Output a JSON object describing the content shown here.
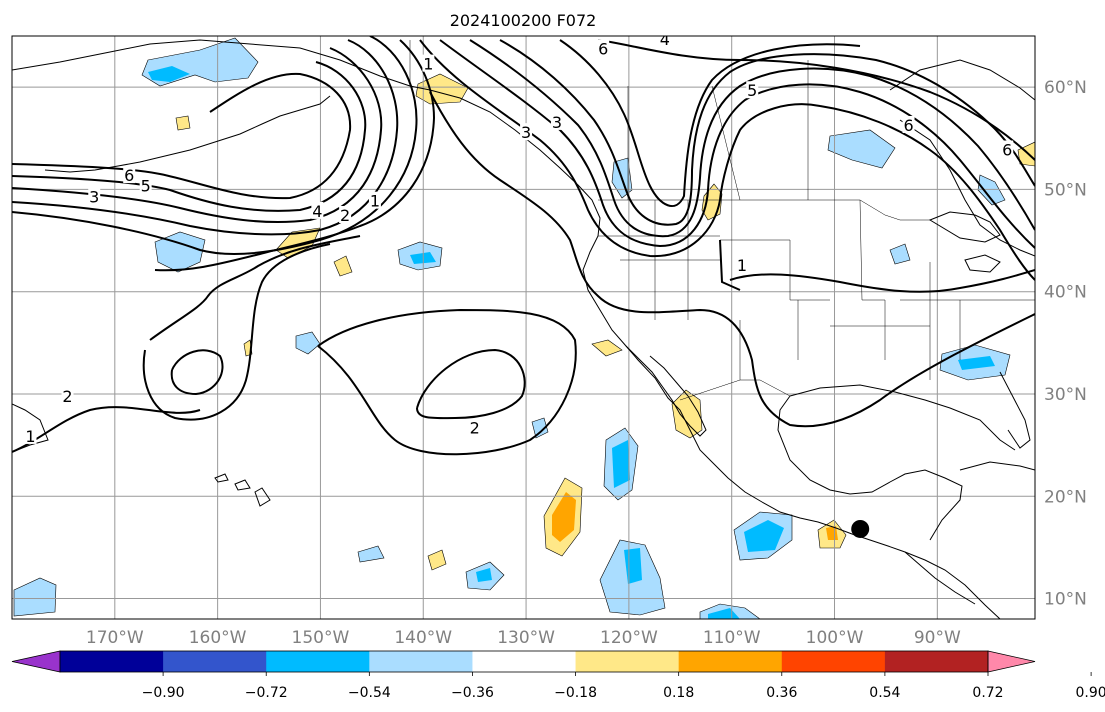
{
  "title": "2024100200 F072",
  "map": {
    "lon_min": -180,
    "lon_max": -80.5,
    "lat_min": 8,
    "lat_max": 65,
    "projection": "PlateCarree",
    "grid": true,
    "lon_ticks": [
      {
        "lon": -170,
        "label": "170°W"
      },
      {
        "lon": -160,
        "label": "160°W"
      },
      {
        "lon": -150,
        "label": "150°W"
      },
      {
        "lon": -140,
        "label": "140°W"
      },
      {
        "lon": -130,
        "label": "130°W"
      },
      {
        "lon": -120,
        "label": "120°W"
      },
      {
        "lon": -110,
        "label": "110°W"
      },
      {
        "lon": -100,
        "label": "100°W"
      },
      {
        "lon": -90,
        "label": "90°W"
      }
    ],
    "lat_ticks": [
      {
        "lat": 60,
        "label": "60°N"
      },
      {
        "lat": 50,
        "label": "50°N"
      },
      {
        "lat": 40,
        "label": "40°N"
      },
      {
        "lat": 30,
        "label": "30°N"
      },
      {
        "lat": 20,
        "label": "20°N"
      },
      {
        "lat": 10,
        "label": "10°N"
      }
    ],
    "marker": {
      "lon": -97.5,
      "lat": 16.8,
      "color": "#000000"
    }
  },
  "contour_labels": [
    {
      "text": "6",
      "lon": -168.6,
      "lat": 51.4
    },
    {
      "text": "5",
      "lon": -167.0,
      "lat": 50.4
    },
    {
      "text": "3",
      "lon": -172.0,
      "lat": 49.3
    },
    {
      "text": "4",
      "lon": -150.3,
      "lat": 47.9
    },
    {
      "text": "2",
      "lon": -147.6,
      "lat": 47.5
    },
    {
      "text": "1",
      "lon": -144.7,
      "lat": 48.9
    },
    {
      "text": "1",
      "lon": -139.5,
      "lat": 62.3
    },
    {
      "text": "2",
      "lon": -174.6,
      "lat": 29.8
    },
    {
      "text": "1",
      "lon": -178.2,
      "lat": 25.9
    },
    {
      "text": "2",
      "lon": -135.0,
      "lat": 26.7
    },
    {
      "text": "6",
      "lon": -122.5,
      "lat": 63.8
    },
    {
      "text": "4",
      "lon": -116.5,
      "lat": 64.7
    },
    {
      "text": "5",
      "lon": -108.0,
      "lat": 59.7
    },
    {
      "text": "6",
      "lon": -92.8,
      "lat": 56.3
    },
    {
      "text": "6",
      "lon": -83.2,
      "lat": 53.9
    },
    {
      "text": "3",
      "lon": -130.0,
      "lat": 55.6
    },
    {
      "text": "3",
      "lon": -127.0,
      "lat": 56.6
    },
    {
      "text": "1",
      "lon": -109.0,
      "lat": 42.6
    }
  ],
  "colorbar": {
    "ticks": [
      {
        "value": -0.9,
        "label": "−0.90"
      },
      {
        "value": -0.72,
        "label": "−0.72"
      },
      {
        "value": -0.54,
        "label": "−0.54"
      },
      {
        "value": -0.36,
        "label": "−0.36"
      },
      {
        "value": -0.18,
        "label": "−0.18"
      },
      {
        "value": 0.18,
        "label": "0.18"
      },
      {
        "value": 0.36,
        "label": "0.36"
      },
      {
        "value": 0.54,
        "label": "0.54"
      },
      {
        "value": 0.72,
        "label": "0.72"
      },
      {
        "value": 0.9,
        "label": "0.90"
      }
    ],
    "colors": [
      "#9933cc",
      "#000099",
      "#3355cc",
      "#00bbff",
      "#aaddff",
      "#ffffff",
      "#ffe888",
      "#ffa500",
      "#ff4400",
      "#b22222",
      "#ff88aa"
    ],
    "extend": "both"
  }
}
